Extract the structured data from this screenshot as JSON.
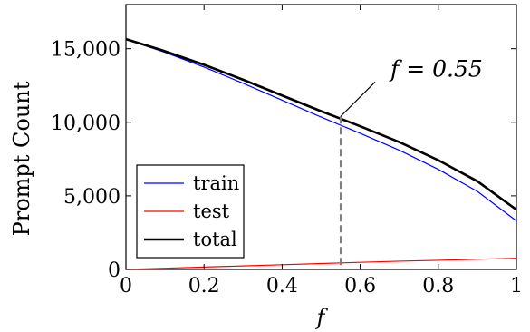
{
  "chart_data": {
    "type": "line",
    "title": "",
    "xlabel": "f",
    "ylabel": "Prompt Count",
    "xlim": [
      0,
      1
    ],
    "ylim": [
      0,
      18000
    ],
    "grid": false,
    "legend_position": "bottom-left",
    "x": [
      0,
      0.1,
      0.2,
      0.3,
      0.4,
      0.5,
      0.6,
      0.7,
      0.8,
      0.9,
      1.0
    ],
    "series": [
      {
        "name": "train",
        "color": "#0000ff",
        "line_width": "thin",
        "values": [
          15650,
          14750,
          13750,
          12650,
          11500,
          10350,
          9250,
          8100,
          6800,
          5300,
          3300
        ]
      },
      {
        "name": "test",
        "color": "#ff0000",
        "line_width": "thin",
        "values": [
          0,
          80,
          160,
          240,
          320,
          400,
          480,
          560,
          620,
          690,
          760
        ]
      },
      {
        "name": "total",
        "color": "#000000",
        "line_width": "thick",
        "values": [
          15650,
          14830,
          13910,
          12890,
          11820,
          10750,
          9730,
          8660,
          7420,
          5990,
          4060
        ]
      }
    ],
    "x_ticks": [
      "0",
      "0.2",
      "0.4",
      "0.6",
      "0.8",
      "1"
    ],
    "x_tick_values": [
      0,
      0.2,
      0.4,
      0.6,
      0.8,
      1
    ],
    "y_ticks": [
      "0",
      "5,000",
      "10,000",
      "15,000"
    ],
    "y_tick_values": [
      0,
      5000,
      10000,
      15000
    ],
    "annotation": {
      "text": "f = 0.55",
      "x": 0.55,
      "y": 10400,
      "dashed_line_color": "#808080"
    }
  }
}
